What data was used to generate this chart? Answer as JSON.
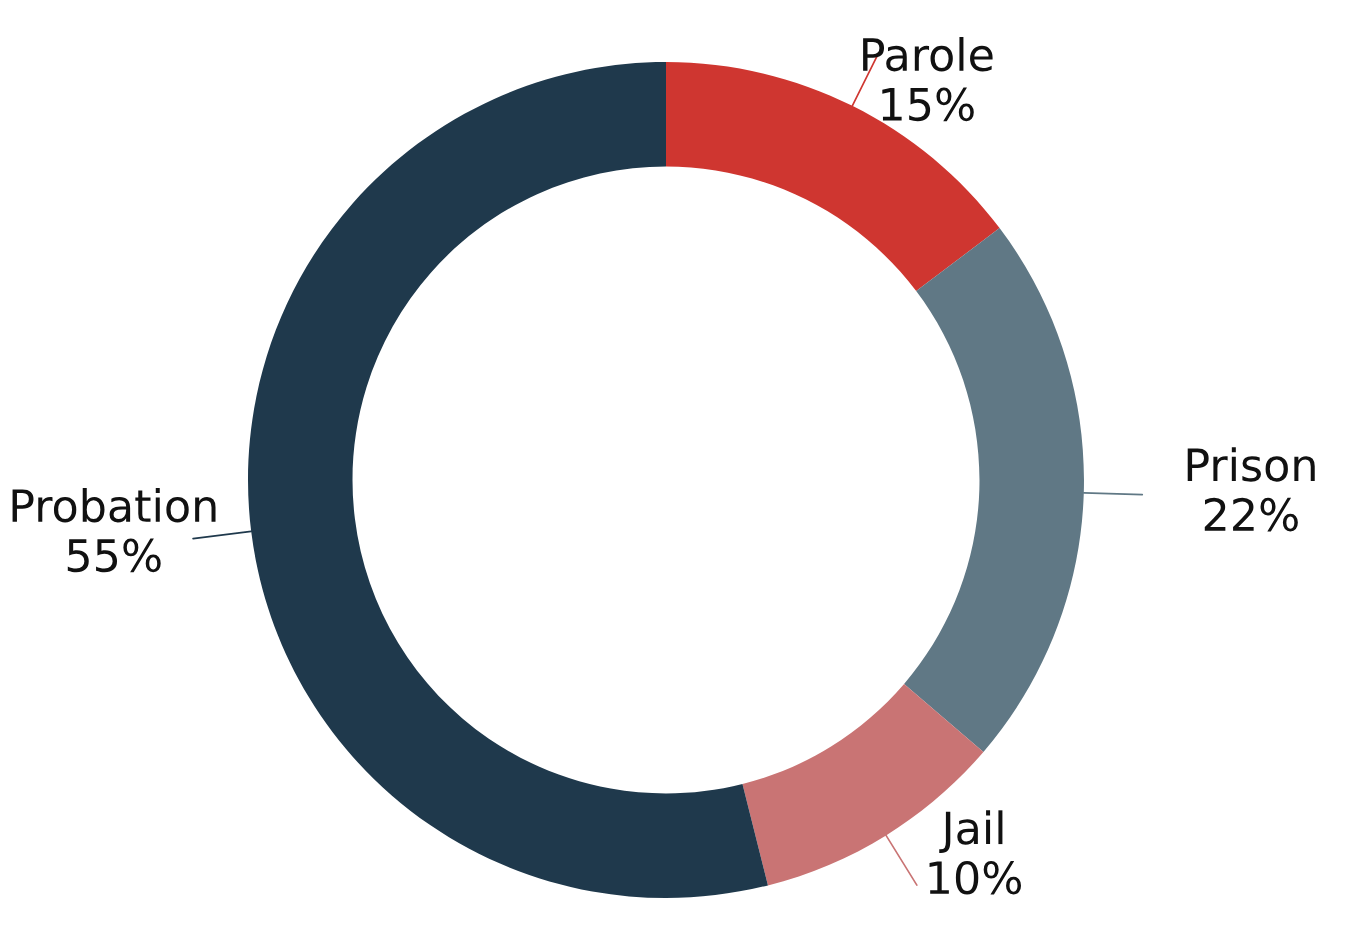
{
  "chart_data": {
    "type": "donut",
    "categories": [
      "Parole",
      "Prison",
      "Jail",
      "Probation"
    ],
    "values": [
      15,
      22,
      10,
      55
    ],
    "colors": [
      "#cf3630",
      "#607885",
      "#c97474",
      "#1f394c"
    ],
    "value_labels": [
      "15%",
      "22%",
      "10%",
      "55%"
    ]
  }
}
